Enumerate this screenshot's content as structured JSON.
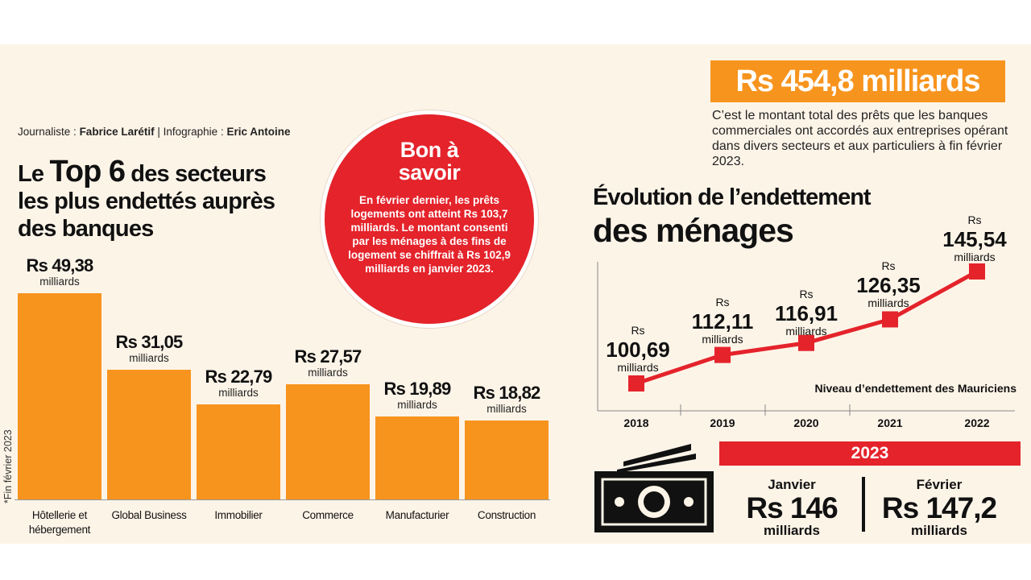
{
  "credits": {
    "journalist_label": "Journaliste :",
    "journalist": "Fabrice Larétif",
    "separator": "|",
    "infographic_label": "Infographie :",
    "infographic": "Eric Antoine"
  },
  "left_title": {
    "prefix": "Le",
    "highlight": "Top 6",
    "rest_line1": "des secteurs",
    "line2": "les plus endettés auprès",
    "line3": "des banques"
  },
  "footnote": "*Fin février 2023",
  "bon_a_savoir": {
    "title_line1": "Bon à",
    "title_line2": "savoir",
    "text": "En février dernier, les prêts logements ont atteint Rs 103,7 milliards. Le montant consenti par les ménages à des fins de logement se chiffrait à Rs 102,9 milliards en janvier 2023."
  },
  "headline": {
    "amount": "Rs 454,8 milliards",
    "description": "C’est le montant total des prêts que les banques commerciales ont accordés aux entreprises opérant dans divers secteurs et aux particuliers à fin février 2023."
  },
  "right_title": {
    "line1": "Évolution de l’endettement",
    "line2": "des ménages"
  },
  "year_2023": {
    "title": "2023",
    "months": [
      {
        "month": "Janvier",
        "value": "Rs 146",
        "unit": "milliards"
      },
      {
        "month": "Février",
        "value": "Rs 147,2",
        "unit": "milliards"
      }
    ]
  },
  "colors": {
    "orange": "#f7941e",
    "red": "#e4232b",
    "background": "#fdf4e8",
    "text": "#111111"
  },
  "chart_data": [
    {
      "type": "bar",
      "title": "Le Top 6 des secteurs les plus endettés auprès des banques",
      "categories": [
        "Hôtellerie et hébergement",
        "Global Business",
        "Immobilier",
        "Commerce",
        "Manufacturier",
        "Construction"
      ],
      "values": [
        49.38,
        31.05,
        22.79,
        27.57,
        19.89,
        18.82
      ],
      "value_labels": [
        "Rs 49,38",
        "Rs 31,05",
        "Rs 22,79",
        "Rs 27,57",
        "Rs 19,89",
        "Rs 18,82"
      ],
      "unit": "milliards",
      "ylim": [
        0,
        49.38
      ],
      "grid": false
    },
    {
      "type": "line",
      "title": "Évolution de l’endettement des ménages",
      "series_label": "Niveau d’endettement des Mauriciens",
      "x": [
        "2018",
        "2019",
        "2020",
        "2021",
        "2022"
      ],
      "values": [
        100.69,
        112.11,
        116.91,
        126.35,
        145.54
      ],
      "value_labels": [
        "100,69",
        "112,11",
        "116,91",
        "126,35",
        "145,54"
      ],
      "currency": "Rs",
      "unit": "milliards",
      "ylim": [
        100.69,
        145.54
      ],
      "grid": false
    }
  ]
}
